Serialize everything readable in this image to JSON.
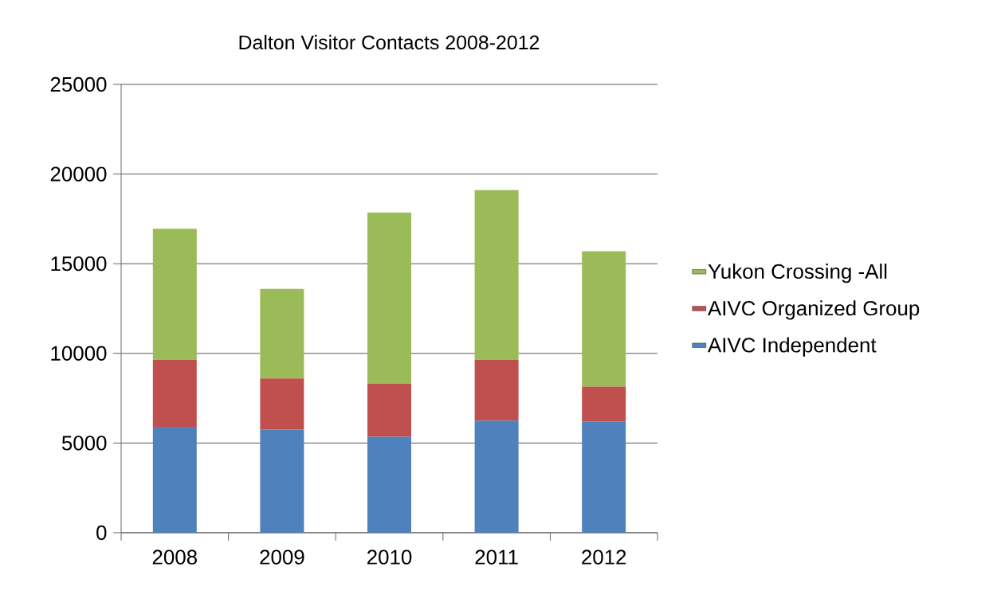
{
  "chart_data": {
    "type": "bar",
    "title": "Dalton Visitor Contacts 2008-2012",
    "stacked": true,
    "categories": [
      "2008",
      "2009",
      "2010",
      "2011",
      "2012"
    ],
    "series": [
      {
        "name": "AIVC Independent",
        "color": "#4f81bd",
        "values": [
          5900,
          5750,
          5350,
          6250,
          6200
        ]
      },
      {
        "name": "AIVC Organized Group",
        "color": "#c0504d",
        "values": [
          3750,
          2850,
          2950,
          3400,
          1950
        ]
      },
      {
        "name": "Yukon Crossing -All",
        "color": "#9bbb59",
        "values": [
          7300,
          5000,
          9550,
          9450,
          7550
        ]
      }
    ],
    "ylim": [
      0,
      25000
    ],
    "yticks": [
      0,
      5000,
      10000,
      15000,
      20000,
      25000
    ],
    "grid": "y",
    "legend": "right"
  }
}
